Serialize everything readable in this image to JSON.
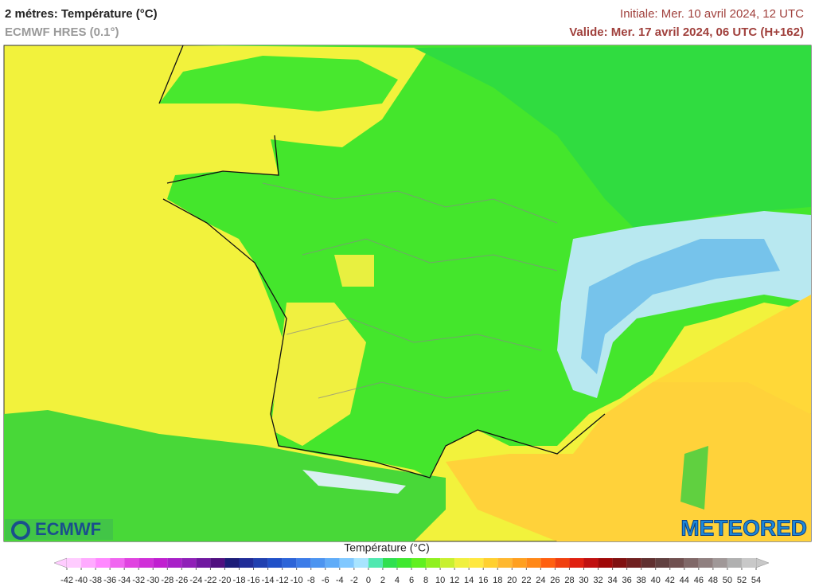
{
  "header": {
    "title": "2 métres: Température (°C)",
    "subtitle": "ECMWF HRES (0.1°)",
    "initiale": "Initiale: Mer. 10 avril 2024, 12 UTC",
    "valide": "Valide: Mer. 17 avril 2024, 06 UTC (H+162)"
  },
  "logos": {
    "left": "ECMWF",
    "right": "METEORED"
  },
  "colorbar": {
    "title": "Température (°C)",
    "ticks": [
      -42,
      -40,
      -38,
      -36,
      -34,
      -32,
      -30,
      -28,
      -26,
      -24,
      -22,
      -20,
      -18,
      -16,
      -14,
      -12,
      -10,
      -8,
      -6,
      -4,
      -2,
      0,
      2,
      4,
      6,
      8,
      10,
      12,
      14,
      16,
      18,
      20,
      22,
      24,
      26,
      28,
      30,
      32,
      34,
      36,
      38,
      40,
      42,
      44,
      46,
      48,
      50,
      52,
      54
    ],
    "colors": [
      "#ffccff",
      "#ffaaff",
      "#ff88ff",
      "#f066f0",
      "#e044e0",
      "#d030d8",
      "#c020d0",
      "#a820c8",
      "#9020b8",
      "#7018a0",
      "#501080",
      "#1c1c78",
      "#202c98",
      "#2040b0",
      "#2050c8",
      "#2c64d8",
      "#3c7ce8",
      "#4c94f0",
      "#60acf8",
      "#80c8ff",
      "#a8e4ff",
      "#50e8b0",
      "#30e050",
      "#40e830",
      "#60f020",
      "#90f020",
      "#c8f030",
      "#f0f040",
      "#ffe840",
      "#ffd030",
      "#ffb830",
      "#ffa020",
      "#ff8818",
      "#ff6010",
      "#f04010",
      "#e02010",
      "#c01010",
      "#a00808",
      "#801010",
      "#702020",
      "#603030",
      "#604040",
      "#705050",
      "#806868",
      "#908080",
      "#a09898",
      "#b0b0b0",
      "#c8c8c8"
    ]
  }
}
